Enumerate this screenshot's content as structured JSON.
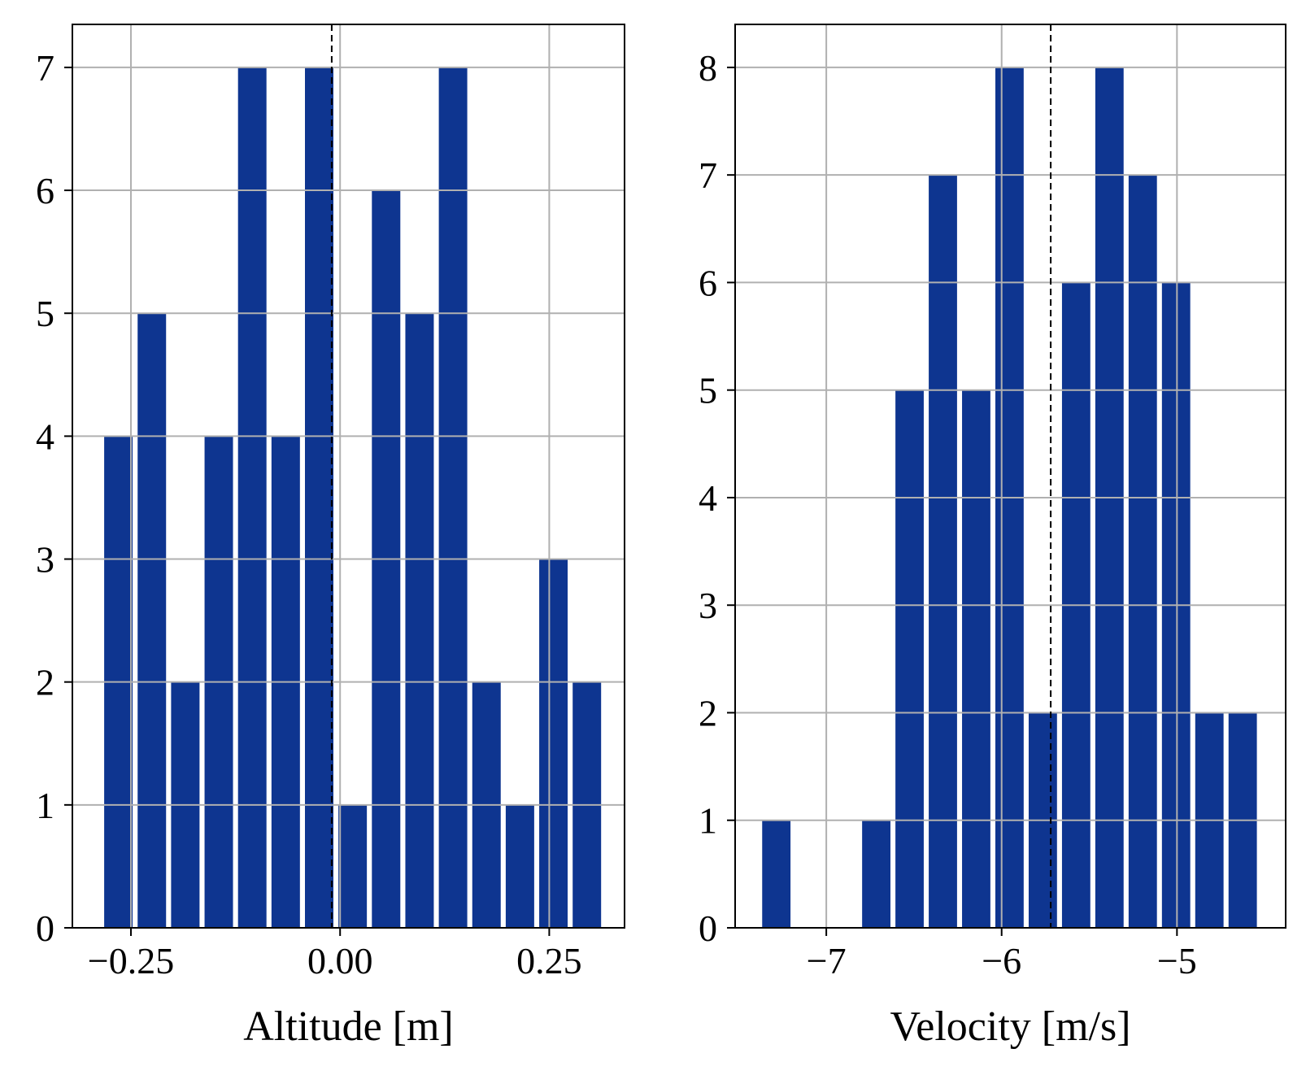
{
  "chart_data": [
    {
      "type": "bar",
      "xlabel": "Altitude [m]",
      "ylabel": "",
      "xlim": [
        -0.32,
        0.34
      ],
      "ylim": [
        0,
        7.35
      ],
      "xticks": [
        -0.25,
        0.0,
        0.25
      ],
      "xtick_labels": [
        "−0.25",
        "0.00",
        "0.25"
      ],
      "yticks": [
        0,
        1,
        2,
        3,
        4,
        5,
        6,
        7
      ],
      "ytick_labels": [
        "0",
        "1",
        "2",
        "3",
        "4",
        "5",
        "6",
        "7"
      ],
      "bar_color": "#0e3590",
      "bin_edges": [
        -0.285,
        -0.245,
        -0.205,
        -0.165,
        -0.125,
        -0.085,
        -0.045,
        -0.005,
        0.035,
        0.075,
        0.115,
        0.155,
        0.195,
        0.235,
        0.275,
        0.315
      ],
      "counts": [
        4,
        5,
        2,
        4,
        7,
        4,
        7,
        1,
        6,
        5,
        7,
        2,
        1,
        3,
        2
      ],
      "reference_line": -0.01,
      "grid": true
    },
    {
      "type": "bar",
      "xlabel": "Velocity [m/s]",
      "ylabel": "",
      "xlim": [
        -7.52,
        -4.38
      ],
      "ylim": [
        0,
        8.4
      ],
      "xticks": [
        -7,
        -6,
        -5
      ],
      "xtick_labels": [
        "−7",
        "−6",
        "−5"
      ],
      "yticks": [
        0,
        1,
        2,
        3,
        4,
        5,
        6,
        7,
        8
      ],
      "ytick_labels": [
        "0",
        "1",
        "2",
        "3",
        "4",
        "5",
        "6",
        "7",
        "8"
      ],
      "bar_color": "#0e3590",
      "bin_edges": [
        -7.38,
        -7.19,
        -7.0,
        -6.81,
        -6.62,
        -6.43,
        -6.24,
        -6.05,
        -5.86,
        -5.67,
        -5.48,
        -5.29,
        -5.1,
        -4.91,
        -4.72,
        -4.53
      ],
      "counts": [
        1,
        0,
        0,
        1,
        5,
        7,
        5,
        8,
        2,
        6,
        8,
        7,
        6,
        2,
        2
      ],
      "reference_line": -5.72,
      "grid": true
    }
  ]
}
